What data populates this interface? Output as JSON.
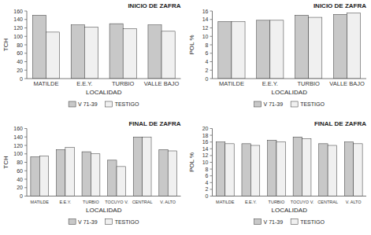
{
  "chart_data": [
    {
      "type": "bar",
      "title": "INICIO DE ZAFRA",
      "x_label": "LOCALIDAD",
      "y_label": "TCH",
      "categories": [
        "MATILDE",
        "E.E.Y.",
        "TURBIO",
        "VALLE BAJO"
      ],
      "series": [
        {
          "name": "V 71-39",
          "color": "#c8c8c8",
          "values": [
            150,
            127,
            130,
            127
          ]
        },
        {
          "name": "TESTIGO",
          "color": "#f0f0f0",
          "values": [
            110,
            122,
            118,
            112
          ]
        }
      ],
      "ylim": [
        0,
        160
      ],
      "yticks": [
        0,
        20,
        40,
        60,
        80,
        100,
        120,
        140,
        160
      ],
      "grid": false,
      "legend": "bottom"
    },
    {
      "type": "bar",
      "title": "INICIO DE ZAFRA",
      "x_label": "LOCALIDAD",
      "y_label": "POL %",
      "categories": [
        "MATILDE",
        "E.E.Y.",
        "TURBIO",
        "VALLE BAJO"
      ],
      "series": [
        {
          "name": "V 71-39",
          "color": "#c8c8c8",
          "values": [
            13.5,
            13.8,
            15.0,
            15.2
          ]
        },
        {
          "name": "TESTIGO",
          "color": "#f0f0f0",
          "values": [
            13.5,
            13.8,
            14.5,
            15.5
          ]
        }
      ],
      "ylim": [
        0,
        16
      ],
      "yticks": [
        0,
        2,
        4,
        6,
        8,
        10,
        12,
        14,
        16
      ],
      "grid": false,
      "legend": "bottom"
    },
    {
      "type": "bar",
      "title": "FINAL DE ZAFRA",
      "x_label": "LOCALIDAD",
      "y_label": "TCH",
      "categories": [
        "MATILDE",
        "E.E.Y.",
        "TURBIO",
        "TOCUYO V.",
        "CENTRAL",
        "V. ALTO"
      ],
      "series": [
        {
          "name": "V 71-39",
          "color": "#c8c8c8",
          "values": [
            93,
            110,
            105,
            85,
            140,
            110
          ]
        },
        {
          "name": "TESTIGO",
          "color": "#f0f0f0",
          "values": [
            95,
            115,
            100,
            70,
            140,
            107
          ]
        }
      ],
      "ylim": [
        0,
        160
      ],
      "yticks": [
        0,
        20,
        40,
        60,
        80,
        100,
        120,
        140,
        160
      ],
      "grid": false,
      "legend": "bottom"
    },
    {
      "type": "bar",
      "title": "FINAL DE ZAFRA",
      "x_label": "LOCALIDAD",
      "y_label": "POL %",
      "categories": [
        "MATILDE",
        "E.E.Y.",
        "TURBIO",
        "TOCUYO V.",
        "CENTRAL",
        "V. ALTO"
      ],
      "series": [
        {
          "name": "V 71-39",
          "color": "#c8c8c8",
          "values": [
            16.0,
            15.5,
            16.5,
            17.5,
            15.5,
            16.0
          ]
        },
        {
          "name": "TESTIGO",
          "color": "#f0f0f0",
          "values": [
            15.5,
            15.0,
            16.0,
            17.0,
            15.0,
            15.5
          ]
        }
      ],
      "ylim": [
        0,
        20
      ],
      "yticks": [
        0,
        2,
        4,
        6,
        8,
        10,
        12,
        14,
        16,
        18,
        20
      ],
      "grid": false,
      "legend": "bottom"
    }
  ]
}
